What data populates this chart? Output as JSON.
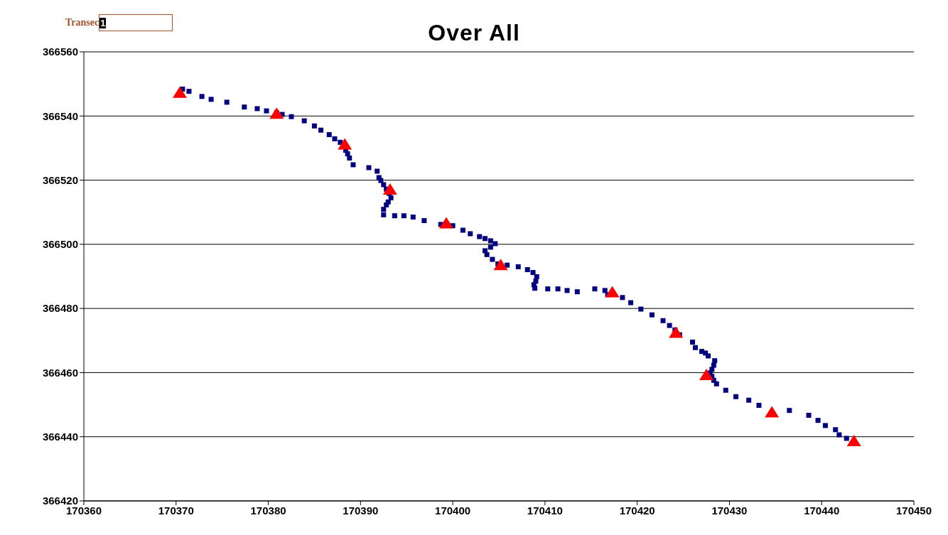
{
  "chart_data": {
    "type": "scatter",
    "title": "Over All",
    "annotations": [
      "Transec",
      "1"
    ],
    "xlim": [
      170360,
      170450
    ],
    "xticks": [
      170360,
      170370,
      170380,
      170390,
      170400,
      170410,
      170420,
      170430,
      170440,
      170450
    ],
    "ylim": [
      366420,
      366560
    ],
    "yticks": [
      366420,
      366440,
      366460,
      366480,
      366500,
      366520,
      366540,
      366560
    ],
    "grid": "y",
    "legend": false,
    "series": [
      {
        "color": "#000080",
        "marker": "square",
        "x": [
          170370.7,
          170371.4,
          170372.8,
          170373.8,
          170375.5,
          170377.4,
          170378.8,
          170379.8,
          170380.9,
          170381.5,
          170382.5,
          170383.9,
          170385.0,
          170385.7,
          170386.6,
          170387.2,
          170387.8,
          170388.4,
          170388.6,
          170388.8,
          170389.2,
          170390.9,
          170391.8,
          170392.0,
          170392.2,
          170392.5,
          170392.8,
          170393.1,
          170393.3,
          170393.0,
          170392.8,
          170392.5,
          170392.5,
          170393.7,
          170394.7,
          170395.7,
          170396.9,
          170398.7,
          170400.0,
          170401.1,
          170401.9,
          170402.9,
          170403.5,
          170404.1,
          170404.6,
          170404.1,
          170403.5,
          170403.7,
          170404.3,
          170404.9,
          170405.9,
          170407.1,
          170408.1,
          170408.7,
          170409.1,
          170409.0,
          170408.8,
          170408.9,
          170410.3,
          170411.4,
          170412.4,
          170413.5,
          170415.4,
          170416.5,
          170416.8,
          170418.4,
          170419.3,
          170420.4,
          170421.6,
          170422.8,
          170423.5,
          170424.1,
          170424.6,
          170426.0,
          170426.3,
          170427.0,
          170427.4,
          170427.7,
          170428.4,
          170428.3,
          170428.1,
          170427.9,
          170428.1,
          170428.3,
          170428.6,
          170429.6,
          170430.7,
          170432.1,
          170433.2,
          170436.5,
          170438.6,
          170439.6,
          170440.4,
          170441.5,
          170441.9,
          170442.7
        ],
        "values": [
          366548.4,
          366547.7,
          366546.1,
          366545.2,
          366544.3,
          366542.8,
          366542.3,
          366541.6,
          366541.0,
          366540.5,
          366539.8,
          366538.5,
          366536.9,
          366535.6,
          366534.2,
          366532.9,
          366531.8,
          366529.3,
          366528.2,
          366526.9,
          366524.8,
          366523.9,
          366522.8,
          366520.8,
          366519.9,
          366518.6,
          366517.2,
          366515.9,
          366514.5,
          366513.2,
          366512.3,
          366510.9,
          366509.2,
          366508.9,
          366508.9,
          366508.5,
          366507.4,
          366506.2,
          366505.8,
          366504.4,
          366503.3,
          366502.4,
          366501.8,
          366501.1,
          366500.2,
          366499.1,
          366498.0,
          366496.8,
          366495.3,
          366493.9,
          366493.5,
          366493.0,
          366492.1,
          366491.2,
          366489.9,
          366488.5,
          366487.4,
          366486.3,
          366486.1,
          366486.1,
          366485.6,
          366485.2,
          366486.1,
          366485.6,
          366484.3,
          366483.4,
          366481.8,
          366479.8,
          366478.0,
          366476.2,
          366474.7,
          366473.3,
          366471.8,
          366469.5,
          366467.8,
          366466.6,
          366466.1,
          366465.2,
          366463.7,
          366462.3,
          366461.0,
          366459.9,
          366458.8,
          366457.6,
          366456.5,
          366454.5,
          366452.5,
          366451.4,
          366449.8,
          366448.2,
          366446.7,
          366445.1,
          366443.5,
          366442.2,
          366440.6,
          366439.5
        ]
      },
      {
        "color": "#ff0000",
        "marker": "triangle",
        "x": [
          170370.4,
          170380.9,
          170388.3,
          170393.2,
          170399.3,
          170405.2,
          170417.3,
          170424.2,
          170427.5,
          170434.6,
          170443.5
        ],
        "values": [
          366547.2,
          366540.7,
          366531.1,
          366517.0,
          366506.5,
          366493.5,
          366485.0,
          366472.4,
          366459.2,
          366447.6,
          366438.6
        ]
      }
    ]
  }
}
